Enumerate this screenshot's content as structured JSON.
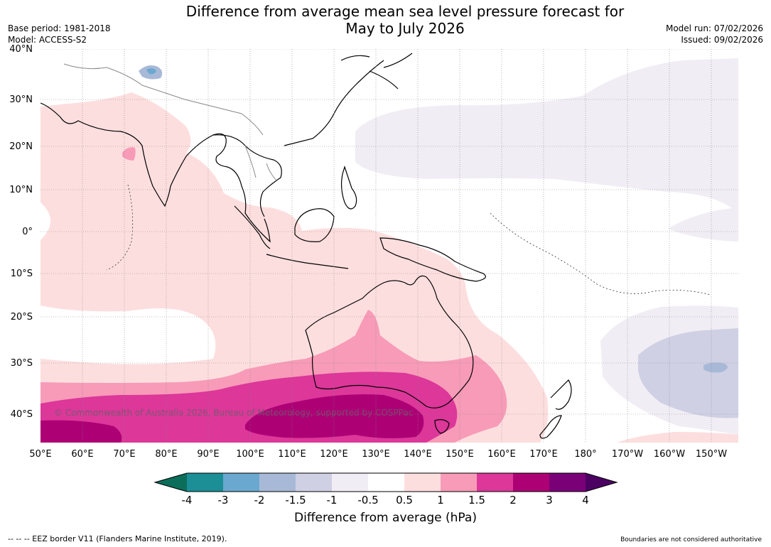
{
  "title": {
    "line1": "Difference from average mean sea level pressure forecast for",
    "line2": "May to July 2026"
  },
  "meta": {
    "base_period": "Base period: 1981-2018",
    "model": "Model: ACCESS-S2",
    "model_run": "Model run: 07/02/2026",
    "issued": "Issued: 09/02/2026"
  },
  "latitude_labels": [
    "40°N",
    "30°N",
    "20°N",
    "10°N",
    "0°",
    "10°S",
    "20°S",
    "30°S",
    "40°S"
  ],
  "longitude_labels": [
    "50°E",
    "60°E",
    "70°E",
    "80°E",
    "90°E",
    "100°E",
    "110°E",
    "120°E",
    "130°E",
    "140°E",
    "150°E",
    "160°E",
    "170°E",
    "180°",
    "170°W",
    "160°W",
    "150°W"
  ],
  "colorbar": {
    "ticks": [
      "-4",
      "-3",
      "-2",
      "-1.5",
      "-1",
      "-0.5",
      "0.5",
      "1",
      "1.5",
      "2",
      "3",
      "4"
    ],
    "colors": {
      "lt_m4": "#0b6e5b",
      "m4_m3": "#1b8e96",
      "m3_m2": "#6aa8d0",
      "m2_m1_5": "#a8b9d8",
      "m1_5_m1": "#cfd0e4",
      "m1_m0_5": "#f1edf4",
      "m0_5_0_5": "#ffffff",
      "p0_5_1": "#fddede",
      "p1_1_5": "#f79bb8",
      "p1_5_2": "#dc3799",
      "p2_3": "#ad0075",
      "p3_4": "#7a0078",
      "gt_4": "#4b0062"
    },
    "label": "Difference from average (hPa)"
  },
  "copyright": "© Commonwealth of Australia 2026, Bureau of Meteorology, supported by COSPPac",
  "footer": {
    "eez": "--  --  -- EEZ border V11 (Flanders Marine Institute, 2019).",
    "disclaimer": "Boundaries are not considered authoritative"
  }
}
